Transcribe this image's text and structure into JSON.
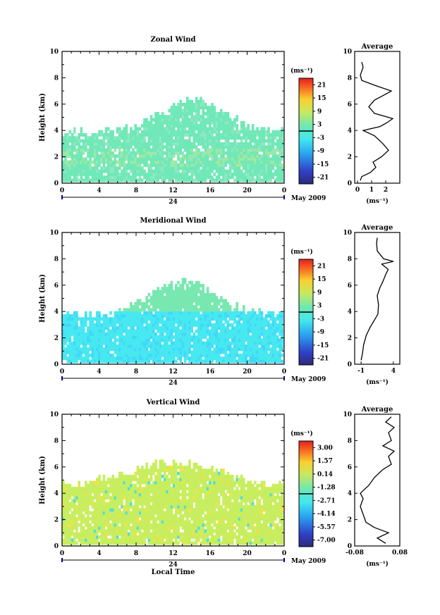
{
  "chart_data": [
    {
      "type": "heatmap",
      "title": "Zonal Wind",
      "ylabel": "Height (km)",
      "xlabel": "",
      "x_ticks": [
        "0",
        "4",
        "8",
        "12",
        "16",
        "20",
        "0"
      ],
      "y_ticks": [
        "0",
        "2",
        "4",
        "6",
        "8",
        "10"
      ],
      "xlim": [
        0,
        24
      ],
      "ylim": [
        0,
        10
      ],
      "date_label": "24",
      "month_label": "May 2009",
      "colorbar": {
        "unit": "(ms⁻¹)",
        "ticks": [
          "21",
          "15",
          "9",
          "3",
          "-3",
          "-9",
          "-15",
          "-21"
        ],
        "range": [
          -24,
          24
        ]
      },
      "average": {
        "title": "Average",
        "x_ticks": [
          "0",
          "1",
          "2"
        ],
        "xlim": [
          -0.2,
          3.0
        ],
        "ylim": [
          0,
          10
        ],
        "unit": "(ms⁻¹)",
        "profile": [
          [
            0.2,
            0.2
          ],
          [
            0.3,
            0.5
          ],
          [
            0.9,
            0.8
          ],
          [
            1.3,
            1.2
          ],
          [
            1.1,
            1.6
          ],
          [
            1.7,
            2.0
          ],
          [
            2.2,
            2.5
          ],
          [
            1.8,
            3.0
          ],
          [
            1.2,
            3.6
          ],
          [
            0.4,
            4.0
          ],
          [
            1.6,
            4.3
          ],
          [
            2.1,
            4.6
          ],
          [
            2.5,
            4.9
          ],
          [
            1.2,
            5.3
          ],
          [
            0.8,
            5.8
          ],
          [
            1.2,
            6.3
          ],
          [
            1.9,
            6.7
          ],
          [
            2.4,
            7.0
          ],
          [
            1.3,
            7.4
          ],
          [
            0.3,
            7.8
          ],
          [
            0.2,
            8.2
          ],
          [
            0.4,
            8.8
          ],
          [
            0.3,
            9.2
          ]
        ]
      }
    },
    {
      "type": "heatmap",
      "title": "Meridional Wind",
      "ylabel": "Height (km)",
      "xlabel": "",
      "x_ticks": [
        "0",
        "4",
        "8",
        "12",
        "16",
        "20",
        "0"
      ],
      "y_ticks": [
        "0",
        "2",
        "4",
        "6",
        "8",
        "10"
      ],
      "xlim": [
        0,
        24
      ],
      "ylim": [
        0,
        10
      ],
      "date_label": "24",
      "month_label": "May 2009",
      "colorbar": {
        "unit": "(ms⁻¹)",
        "ticks": [
          "21",
          "15",
          "9",
          "3",
          "-3",
          "-9",
          "-15",
          "-21"
        ],
        "range": [
          -24,
          24
        ]
      },
      "average": {
        "title": "Average",
        "x_ticks": [
          "-1",
          "4"
        ],
        "xlim": [
          -2.0,
          5.0
        ],
        "ylim": [
          0,
          10
        ],
        "unit": "(ms⁻¹)",
        "profile": [
          [
            -1.0,
            0.3
          ],
          [
            -0.8,
            0.8
          ],
          [
            -0.6,
            1.5
          ],
          [
            -0.2,
            2.2
          ],
          [
            0.4,
            2.8
          ],
          [
            1.0,
            3.3
          ],
          [
            1.6,
            3.8
          ],
          [
            1.7,
            4.5
          ],
          [
            1.5,
            5.2
          ],
          [
            1.9,
            5.8
          ],
          [
            2.4,
            6.3
          ],
          [
            2.8,
            6.8
          ],
          [
            3.2,
            7.2
          ],
          [
            2.2,
            7.6
          ],
          [
            4.0,
            7.8
          ],
          [
            2.5,
            8.0
          ],
          [
            1.5,
            8.6
          ],
          [
            1.4,
            9.2
          ],
          [
            1.5,
            9.6
          ]
        ]
      }
    },
    {
      "type": "heatmap",
      "title": "Vertical Wind",
      "ylabel": "Height (km)",
      "xlabel": "Local Time",
      "x_ticks": [
        "0",
        "4",
        "8",
        "12",
        "16",
        "20",
        "0"
      ],
      "y_ticks": [
        "0",
        "2",
        "4",
        "6",
        "8",
        "10"
      ],
      "xlim": [
        0,
        24
      ],
      "ylim": [
        0,
        10
      ],
      "date_label": "24",
      "month_label": "May 2009",
      "colorbar": {
        "unit": "(ms⁻¹)",
        "ticks": [
          "3.00",
          "1.57",
          "0.14",
          "-1.28",
          "-2.71",
          "-4.14",
          "-5.57",
          "-7.00"
        ],
        "range": [
          -7.7,
          3.7
        ]
      },
      "average": {
        "title": "Average",
        "x_ticks": [
          "-0.08",
          "0.08"
        ],
        "xlim": [
          -0.08,
          0.08
        ],
        "ylim": [
          0,
          10
        ],
        "unit": "(ms⁻¹)",
        "profile": [
          [
            0.03,
            0.2
          ],
          [
            0.0,
            0.6
          ],
          [
            0.04,
            1.0
          ],
          [
            -0.01,
            1.4
          ],
          [
            -0.04,
            1.8
          ],
          [
            -0.05,
            2.4
          ],
          [
            -0.06,
            3.0
          ],
          [
            -0.05,
            3.6
          ],
          [
            -0.06,
            4.0
          ],
          [
            -0.03,
            4.6
          ],
          [
            -0.01,
            5.2
          ],
          [
            0.02,
            5.8
          ],
          [
            0.05,
            6.2
          ],
          [
            0.04,
            6.8
          ],
          [
            0.06,
            7.2
          ],
          [
            0.02,
            7.6
          ],
          [
            0.05,
            8.0
          ],
          [
            0.04,
            8.6
          ],
          [
            0.06,
            9.0
          ],
          [
            0.03,
            9.4
          ],
          [
            0.05,
            9.8
          ]
        ]
      }
    }
  ]
}
